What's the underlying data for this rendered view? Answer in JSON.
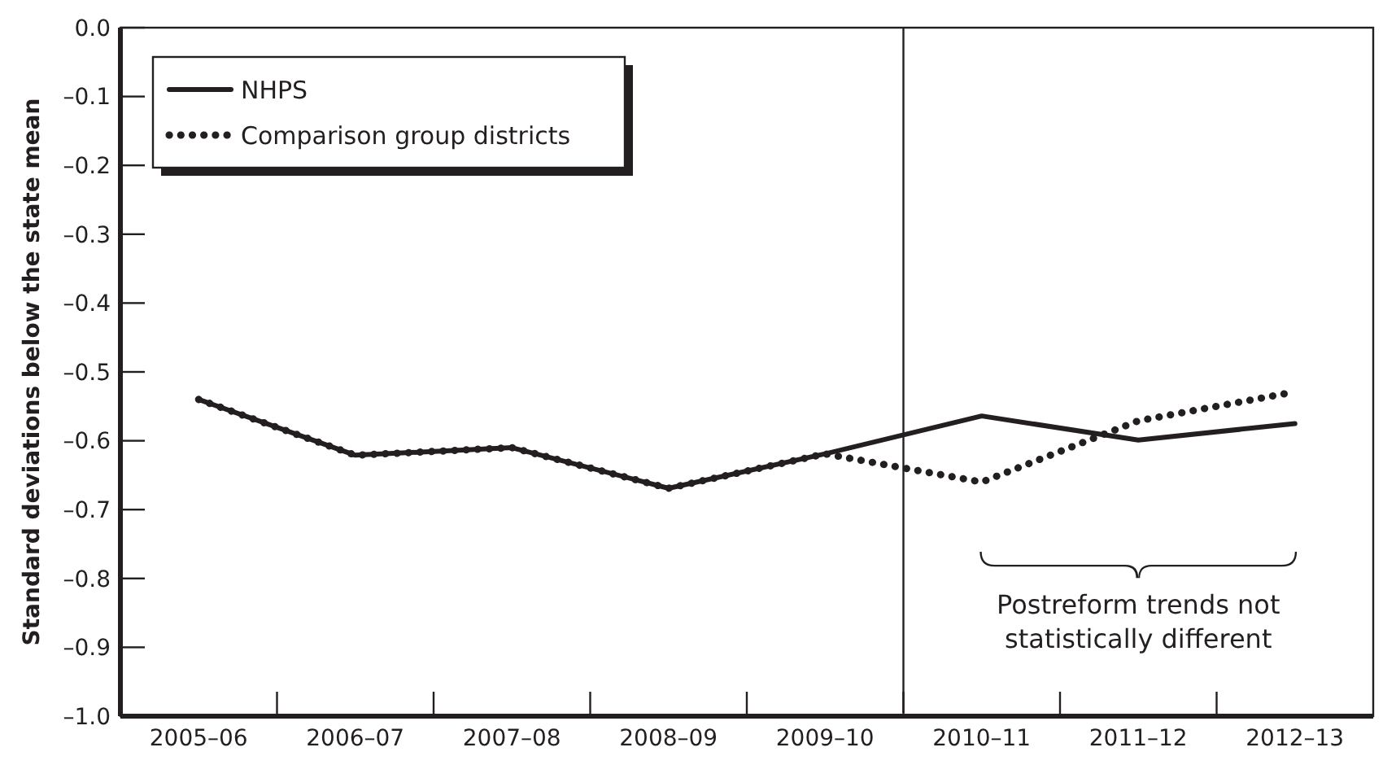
{
  "chart_data": {
    "type": "line",
    "ylabel": "Standard deviations below the state mean",
    "categories": [
      "2005–06",
      "2006–07",
      "2007–08",
      "2008–09",
      "2009–10",
      "2010–11",
      "2011–12",
      "2012–13"
    ],
    "series": [
      {
        "name": "NHPS",
        "color": "#231f20",
        "line_style": "solid",
        "values": [
          -0.54,
          -0.621,
          -0.61,
          -0.669,
          -0.619,
          -0.564,
          -0.599,
          -0.575
        ]
      },
      {
        "name": "Comparison group districts",
        "color": "#231f20",
        "line_style": "dotted",
        "values": [
          -0.54,
          -0.621,
          -0.61,
          -0.669,
          -0.619,
          -0.66,
          -0.571,
          -0.529
        ]
      }
    ],
    "ylim": [
      -1.0,
      0.0
    ],
    "yticks": [
      {
        "value": -1.0,
        "label": "–1.0"
      },
      {
        "value": -0.9,
        "label": "–0.9"
      },
      {
        "value": -0.8,
        "label": "–0.8"
      },
      {
        "value": -0.7,
        "label": "–0.7"
      },
      {
        "value": -0.6,
        "label": "–0.6"
      },
      {
        "value": -0.5,
        "label": "–0.5"
      },
      {
        "value": -0.4,
        "label": "–0.4"
      },
      {
        "value": -0.3,
        "label": "–0.3"
      },
      {
        "value": -0.2,
        "label": "–0.2"
      },
      {
        "value": -0.1,
        "label": "–0.1"
      },
      {
        "value": 0.0,
        "label": "0.0"
      }
    ],
    "annotations": [
      "Postreform trends not statistically different"
    ],
    "legend": "top left",
    "marker": "none",
    "grid": false
  }
}
